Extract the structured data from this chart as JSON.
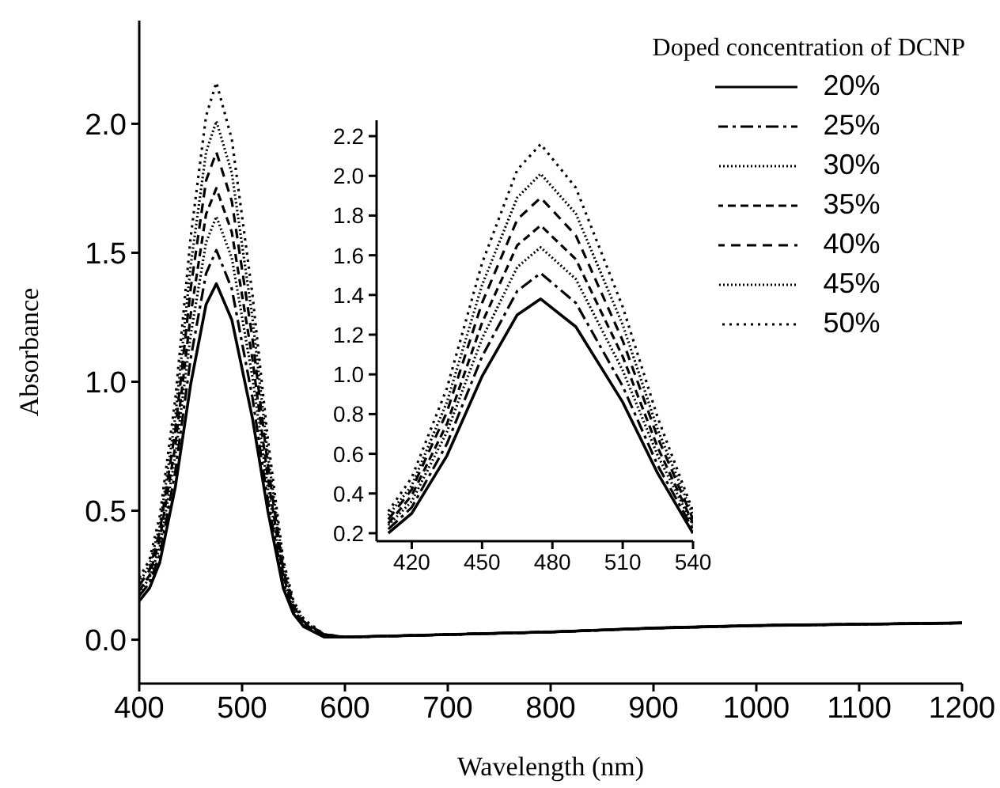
{
  "chart_data": [
    {
      "type": "line",
      "xlabel": "Wavelength (nm)",
      "ylabel": "Absorbance",
      "legend_title": "Doped concentration of DCNP",
      "legend": "top right",
      "grid": false,
      "marker": "none",
      "x": [
        400,
        410,
        420,
        435,
        450,
        465,
        475,
        490,
        510,
        525,
        540,
        550,
        560,
        580,
        600,
        700,
        800,
        900,
        1000,
        1100,
        1200
      ],
      "xlim": [
        400,
        1200
      ],
      "xticks": [
        400,
        500,
        600,
        700,
        800,
        900,
        1000,
        1100,
        1200
      ],
      "ylim": [
        -0.17,
        2.4
      ],
      "yticks": [
        {
          "value": 0,
          "label": "0.0"
        },
        0.5,
        {
          "value": 1,
          "label": "1.0"
        },
        1.5,
        {
          "value": 2,
          "label": "2.0"
        }
      ],
      "series": [
        {
          "name": "20%",
          "color": "#000000",
          "line_style": "solid",
          "values": [
            0.15,
            0.2,
            0.3,
            0.59,
            0.99,
            1.3,
            1.38,
            1.24,
            0.86,
            0.5,
            0.2,
            0.1,
            0.05,
            0.01,
            0.01,
            0.02,
            0.03,
            0.045,
            0.055,
            0.06,
            0.065
          ]
        },
        {
          "name": "25%",
          "color": "#000000",
          "line_style": "dashed",
          "values": [
            0.17,
            0.22,
            0.33,
            0.65,
            1.09,
            1.42,
            1.51,
            1.36,
            0.94,
            0.54,
            0.22,
            0.11,
            0.05,
            0.02,
            0.01,
            0.02,
            0.03,
            0.045,
            0.055,
            0.06,
            0.065
          ]
        },
        {
          "name": "30%",
          "color": "#000000",
          "line_style": "dotted",
          "values": [
            0.18,
            0.24,
            0.36,
            0.71,
            1.18,
            1.54,
            1.64,
            1.48,
            1.02,
            0.59,
            0.24,
            0.11,
            0.06,
            0.02,
            0.01,
            0.02,
            0.03,
            0.045,
            0.055,
            0.06,
            0.065
          ]
        },
        {
          "name": "35%",
          "color": "#000000",
          "line_style": "dashed",
          "values": [
            0.19,
            0.25,
            0.39,
            0.75,
            1.26,
            1.65,
            1.75,
            1.58,
            1.09,
            0.63,
            0.25,
            0.12,
            0.06,
            0.02,
            0.01,
            0.02,
            0.03,
            0.045,
            0.055,
            0.06,
            0.065
          ]
        },
        {
          "name": "40%",
          "color": "#000000",
          "line_style": "dashed",
          "values": [
            0.21,
            0.27,
            0.42,
            0.81,
            1.36,
            1.78,
            1.89,
            1.7,
            1.17,
            0.68,
            0.27,
            0.13,
            0.07,
            0.02,
            0.01,
            0.02,
            0.03,
            0.045,
            0.055,
            0.06,
            0.065
          ]
        },
        {
          "name": "45%",
          "color": "#000000",
          "line_style": "dotted",
          "values": [
            0.22,
            0.29,
            0.44,
            0.86,
            1.45,
            1.89,
            2.01,
            1.81,
            1.25,
            0.72,
            0.29,
            0.14,
            0.07,
            0.02,
            0.01,
            0.02,
            0.03,
            0.045,
            0.055,
            0.06,
            0.065
          ]
        },
        {
          "name": "50%",
          "color": "#000000",
          "line_style": "dotted",
          "values": [
            0.24,
            0.31,
            0.48,
            0.93,
            1.56,
            2.03,
            2.16,
            1.94,
            1.34,
            0.78,
            0.31,
            0.15,
            0.08,
            0.02,
            0.01,
            0.02,
            0.03,
            0.045,
            0.055,
            0.06,
            0.065
          ]
        }
      ]
    },
    {
      "type": "line",
      "grid": false,
      "marker": "none",
      "x": [
        410,
        420,
        435,
        450,
        465,
        475,
        490,
        510,
        525,
        540
      ],
      "xlim": [
        405,
        540
      ],
      "xticks": [
        420,
        450,
        480,
        510,
        540
      ],
      "ylim": [
        0.16,
        2.28
      ],
      "yticks": [
        0.2,
        0.4,
        0.6,
        0.8,
        {
          "value": 1,
          "label": "1.0"
        },
        1.2,
        1.4,
        1.6,
        1.8,
        {
          "value": 2,
          "label": "2.0"
        },
        2.2
      ],
      "series": [
        {
          "color": "#000000",
          "line_style": "solid",
          "values": [
            0.2,
            0.3,
            0.59,
            0.99,
            1.3,
            1.38,
            1.24,
            0.86,
            0.5,
            0.2
          ]
        },
        {
          "color": "#000000",
          "line_style": "dashed",
          "values": [
            0.22,
            0.33,
            0.65,
            1.09,
            1.42,
            1.51,
            1.36,
            0.94,
            0.54,
            0.22
          ]
        },
        {
          "color": "#000000",
          "line_style": "dotted",
          "values": [
            0.24,
            0.36,
            0.71,
            1.18,
            1.54,
            1.64,
            1.48,
            1.02,
            0.59,
            0.24
          ]
        },
        {
          "color": "#000000",
          "line_style": "dashed",
          "values": [
            0.25,
            0.39,
            0.75,
            1.26,
            1.65,
            1.75,
            1.58,
            1.09,
            0.63,
            0.25
          ]
        },
        {
          "color": "#000000",
          "line_style": "dashed",
          "values": [
            0.27,
            0.42,
            0.81,
            1.36,
            1.78,
            1.89,
            1.7,
            1.17,
            0.68,
            0.27
          ]
        },
        {
          "color": "#000000",
          "line_style": "dotted",
          "values": [
            0.29,
            0.44,
            0.86,
            1.45,
            1.89,
            2.01,
            1.81,
            1.25,
            0.72,
            0.29
          ]
        },
        {
          "color": "#000000",
          "line_style": "dotted",
          "values": [
            0.31,
            0.48,
            0.93,
            1.56,
            2.03,
            2.16,
            1.94,
            1.34,
            0.78,
            0.31
          ]
        }
      ]
    }
  ]
}
